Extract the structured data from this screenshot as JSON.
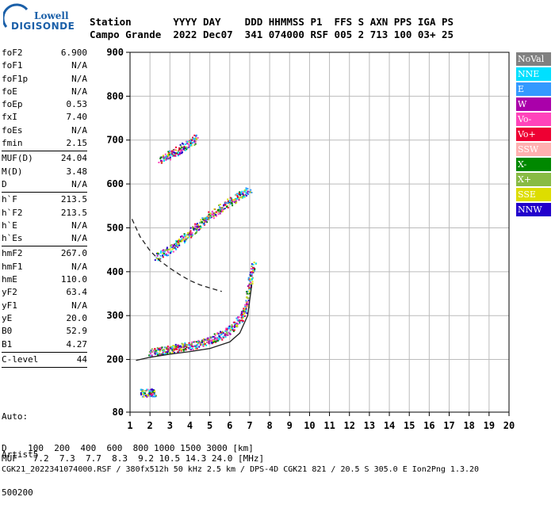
{
  "logo": {
    "line1": "Lowell",
    "line2": "DIGISONDE"
  },
  "header": {
    "line1": "Station       YYYY DAY    DDD HHMMSS P1  FFS S AXN PPS IGA PS",
    "line2": "Campo Grande  2022 Dec07  341 074000 RSF 005 2 713 100 03+ 25"
  },
  "params": [
    {
      "name": "foF2",
      "value": "6.900",
      "sep": false
    },
    {
      "name": "foF1",
      "value": "N/A",
      "sep": false
    },
    {
      "name": "foF1p",
      "value": "N/A",
      "sep": false
    },
    {
      "name": "foE",
      "value": "N/A",
      "sep": false
    },
    {
      "name": "foEp",
      "value": "0.53",
      "sep": false
    },
    {
      "name": "fxI",
      "value": "7.40",
      "sep": false
    },
    {
      "name": "foEs",
      "value": "N/A",
      "sep": false
    },
    {
      "name": "fmin",
      "value": "2.15",
      "sep": true
    },
    {
      "name": "MUF(D)",
      "value": "24.04",
      "sep": false
    },
    {
      "name": "M(D)",
      "value": "3.48",
      "sep": false
    },
    {
      "name": "D",
      "value": "N/A",
      "sep": true
    },
    {
      "name": "h`F",
      "value": "213.5",
      "sep": false
    },
    {
      "name": "h`F2",
      "value": "213.5",
      "sep": false
    },
    {
      "name": "h`E",
      "value": "N/A",
      "sep": false
    },
    {
      "name": "h`Es",
      "value": "N/A",
      "sep": true
    },
    {
      "name": "hmF2",
      "value": "267.0",
      "sep": false
    },
    {
      "name": "hmF1",
      "value": "N/A",
      "sep": false
    },
    {
      "name": "hmE",
      "value": "110.0",
      "sep": false
    },
    {
      "name": "yF2",
      "value": "63.4",
      "sep": false
    },
    {
      "name": "yF1",
      "value": "N/A",
      "sep": false
    },
    {
      "name": "yE",
      "value": "20.0",
      "sep": false
    },
    {
      "name": "B0",
      "value": "52.9",
      "sep": false
    },
    {
      "name": "B1",
      "value": "4.27",
      "sep": true
    },
    {
      "name": "C-level",
      "value": "44",
      "sep": true
    }
  ],
  "autoscale": {
    "line1": "Auto:",
    "line2": "Artist5",
    "line3": "500200"
  },
  "legend": [
    {
      "label": "NoVal",
      "color": "#808080"
    },
    {
      "label": "NNE",
      "color": "#00e0ff"
    },
    {
      "label": "E",
      "color": "#3399ff"
    },
    {
      "label": "W",
      "color": "#aa00aa"
    },
    {
      "label": "Vo-",
      "color": "#ff44bb"
    },
    {
      "label": "Vo+",
      "color": "#ee0033"
    },
    {
      "label": "SSW",
      "color": "#ffb0b0"
    },
    {
      "label": "X-",
      "color": "#008800"
    },
    {
      "label": "X+",
      "color": "#88bb44"
    },
    {
      "label": "SSE",
      "color": "#dddd00"
    },
    {
      "label": "NNW",
      "color": "#2200cc"
    }
  ],
  "footer": {
    "line1": "D    100  200  400  600  800 1000 1500 3000 [km]",
    "line2": "MUF   7.2  7.3  7.7  8.3  9.2 10.5 14.3 24.0 [MHz]",
    "line3": "CGK21_2022341074000.RSF / 380fx512h 50 kHz 2.5 km / DPS-4D CGK21 821 / 20.5 S 305.0 E Ion2Png 1.3.20"
  },
  "chart_data": {
    "type": "scatter",
    "xlim": [
      1,
      20
    ],
    "ylim": [
      80,
      900
    ],
    "x_ticks": [
      "1",
      "2",
      "3",
      "4",
      "5",
      "6",
      "7",
      "8",
      "9",
      "10",
      "11",
      "12",
      "13",
      "14",
      "15",
      "16",
      "17",
      "18",
      "19",
      "20"
    ],
    "y_ticks": [
      "80",
      "200",
      "300",
      "400",
      "500",
      "600",
      "700",
      "800",
      "900"
    ],
    "x_tick_values": [
      1,
      2,
      3,
      4,
      5,
      6,
      7,
      8,
      9,
      10,
      11,
      12,
      13,
      14,
      15,
      16,
      17,
      18,
      19,
      20
    ],
    "y_tick_values": [
      80,
      200,
      300,
      400,
      500,
      600,
      700,
      800,
      900
    ],
    "grid": true,
    "traces": [
      {
        "name": "F2 trace",
        "x": [
          2.0,
          2.5,
          3.0,
          3.5,
          4.0,
          4.5,
          5.0,
          5.5,
          6.0,
          6.5,
          6.8,
          7.0,
          7.2
        ],
        "y": [
          218,
          220,
          224,
          228,
          232,
          238,
          245,
          255,
          270,
          292,
          320,
          380,
          420
        ]
      },
      {
        "name": "2F trace",
        "x": [
          2.3,
          3.0,
          3.5,
          4.0,
          4.5,
          5.0,
          5.5,
          6.0,
          6.5,
          7.0
        ],
        "y": [
          435,
          450,
          470,
          490,
          510,
          530,
          545,
          560,
          575,
          590
        ]
      },
      {
        "name": "3F trace",
        "x": [
          2.5,
          3.0,
          3.5,
          4.0,
          4.3
        ],
        "y": [
          655,
          668,
          680,
          695,
          705
        ]
      },
      {
        "name": "low echo",
        "x": [
          1.5,
          2.0,
          2.2
        ],
        "y": [
          125,
          125,
          125
        ]
      }
    ],
    "curves": [
      {
        "name": "profile",
        "style": "solid",
        "x": [
          1.3,
          2.0,
          3.0,
          4.0,
          5.0,
          6.0,
          6.5,
          6.9,
          7.1
        ],
        "y": [
          198,
          205,
          212,
          218,
          225,
          240,
          260,
          300,
          370
        ]
      },
      {
        "name": "mode",
        "style": "dashed",
        "x": [
          1.1,
          1.5,
          2.0,
          2.5,
          3.0,
          3.5,
          4.0,
          4.5,
          5.0,
          5.6
        ],
        "y": [
          520,
          480,
          448,
          425,
          408,
          393,
          380,
          370,
          363,
          355
        ]
      }
    ]
  }
}
